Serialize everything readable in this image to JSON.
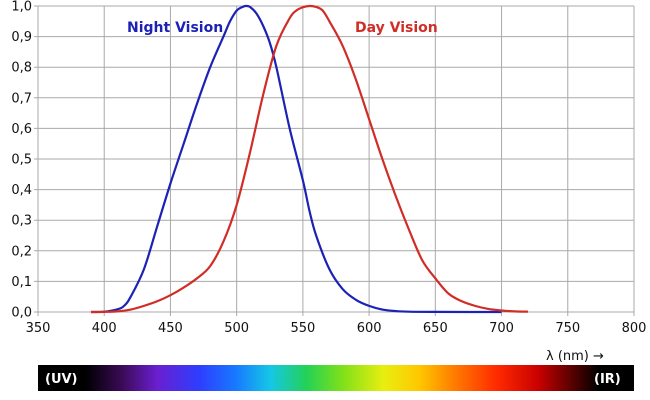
{
  "chart_data": {
    "type": "line",
    "xlabel": "λ (nm) →",
    "xlim": [
      350,
      800
    ],
    "ylim": [
      0,
      1
    ],
    "grid": true,
    "xticks": [
      "350",
      "400",
      "450",
      "500",
      "550",
      "600",
      "650",
      "700",
      "750",
      "800"
    ],
    "yticks": [
      "0,0",
      "0,1",
      "0,2",
      "0,3",
      "0,4",
      "0,5",
      "0,6",
      "0,7",
      "0,8",
      "0,9",
      "1,0"
    ],
    "series": [
      {
        "name": "Night Vision",
        "color": "#1c22b5",
        "x": [
          390,
          400,
          410,
          415,
          420,
          430,
          440,
          450,
          460,
          470,
          480,
          490,
          495,
          500,
          505,
          507,
          510,
          515,
          520,
          525,
          530,
          540,
          550,
          555,
          560,
          570,
          580,
          590,
          600,
          610,
          620,
          630,
          650,
          700
        ],
        "y": [
          0,
          0.001,
          0.009,
          0.02,
          0.05,
          0.14,
          0.28,
          0.42,
          0.55,
          0.68,
          0.8,
          0.9,
          0.95,
          0.985,
          0.998,
          1.0,
          0.997,
          0.975,
          0.935,
          0.88,
          0.8,
          0.6,
          0.43,
          0.33,
          0.25,
          0.14,
          0.075,
          0.04,
          0.02,
          0.008,
          0.003,
          0.001,
          0.0003,
          0
        ]
      },
      {
        "name": "Day Vision",
        "color": "#d12d27",
        "x": [
          390,
          400,
          410,
          420,
          430,
          440,
          450,
          460,
          470,
          480,
          490,
          500,
          510,
          520,
          530,
          540,
          545,
          550,
          555,
          560,
          565,
          570,
          580,
          590,
          600,
          610,
          620,
          630,
          640,
          650,
          660,
          670,
          680,
          690,
          700,
          710,
          720
        ],
        "y": [
          0,
          0.0004,
          0.002,
          0.008,
          0.02,
          0.035,
          0.055,
          0.08,
          0.11,
          0.15,
          0.23,
          0.35,
          0.52,
          0.71,
          0.87,
          0.96,
          0.985,
          0.996,
          1.0,
          0.997,
          0.985,
          0.95,
          0.87,
          0.76,
          0.63,
          0.5,
          0.38,
          0.27,
          0.17,
          0.11,
          0.06,
          0.035,
          0.02,
          0.01,
          0.005,
          0.002,
          0.001
        ]
      }
    ],
    "annotations": [
      {
        "text": "Night Vision",
        "series": "Night Vision"
      },
      {
        "text": "Day Vision",
        "series": "Day Vision"
      }
    ],
    "spectrum_bar": {
      "left_label": "(UV)",
      "right_label": "(IR)"
    }
  }
}
